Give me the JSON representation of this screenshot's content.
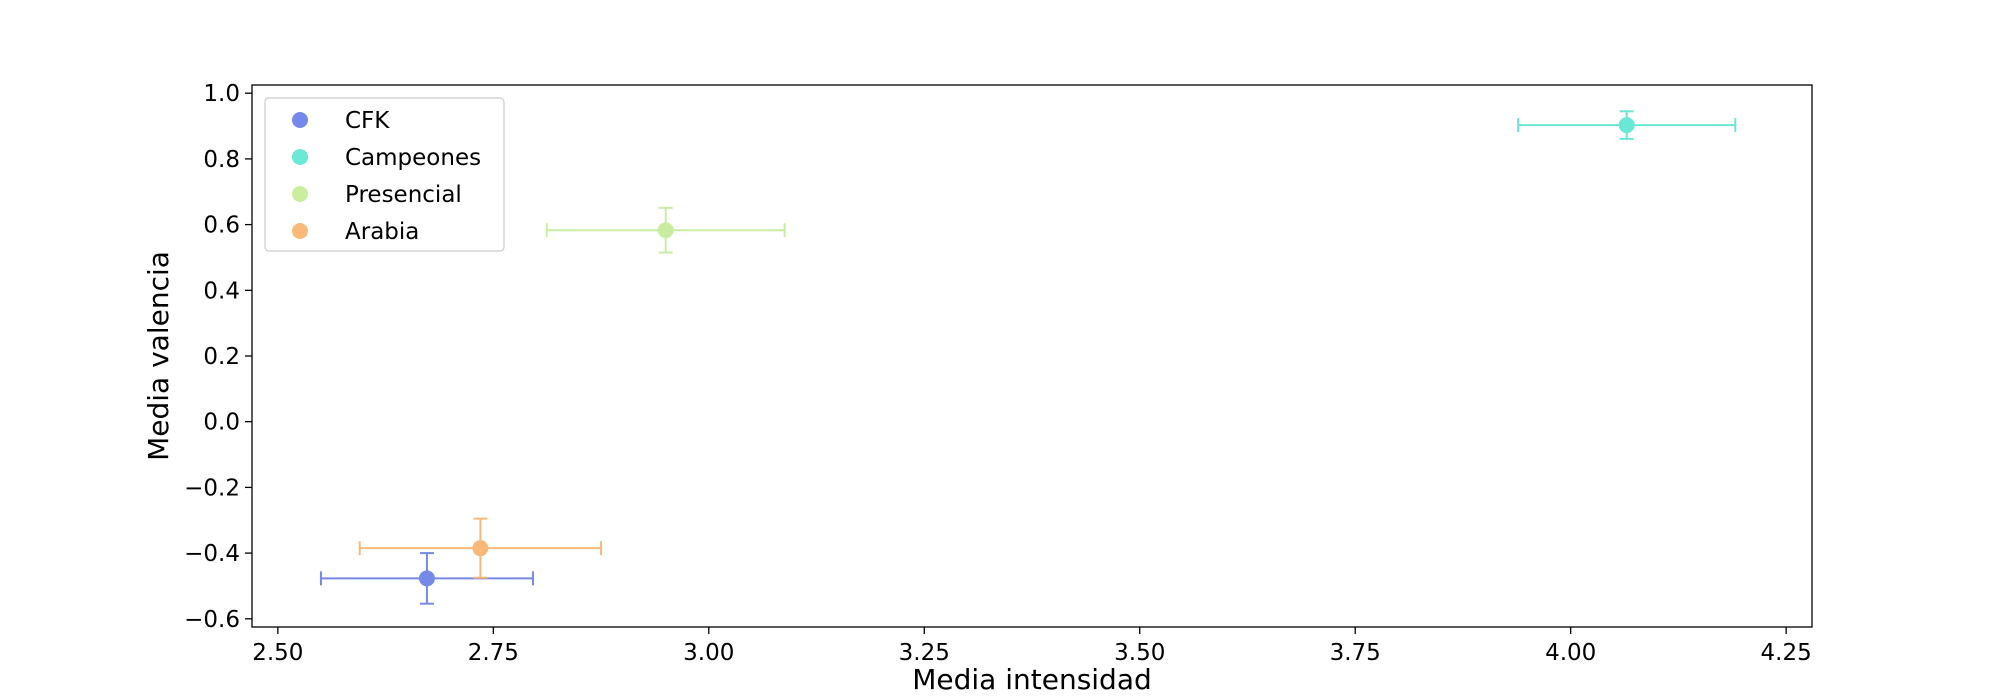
{
  "chart_data": {
    "type": "scatter",
    "xlabel": "Media intensidad",
    "ylabel": "Media valencia",
    "xlim": [
      2.47,
      4.28
    ],
    "ylim": [
      -0.625,
      1.025
    ],
    "xticks": [
      "2.50",
      "2.75",
      "3.00",
      "3.25",
      "3.50",
      "3.75",
      "4.00",
      "4.25"
    ],
    "yticks": [
      "−0.6",
      "−0.4",
      "−0.2",
      "0.0",
      "0.2",
      "0.4",
      "0.6",
      "0.8",
      "1.0"
    ],
    "grid": false,
    "legend_position": "upper-left",
    "series": [
      {
        "name": "CFK",
        "color": "#6a7fe8",
        "x": 2.673,
        "y": -0.477,
        "xerr": 0.123,
        "yerr": 0.077
      },
      {
        "name": "Campeones",
        "color": "#5ee6d2",
        "x": 4.065,
        "y": 0.903,
        "xerr": 0.126,
        "yerr": 0.042
      },
      {
        "name": "Presencial",
        "color": "#c5ec98",
        "x": 2.95,
        "y": 0.583,
        "xerr": 0.138,
        "yerr": 0.068
      },
      {
        "name": "Arabia",
        "color": "#f7b36e",
        "x": 2.735,
        "y": -0.385,
        "xerr": 0.14,
        "yerr": 0.09
      }
    ]
  }
}
